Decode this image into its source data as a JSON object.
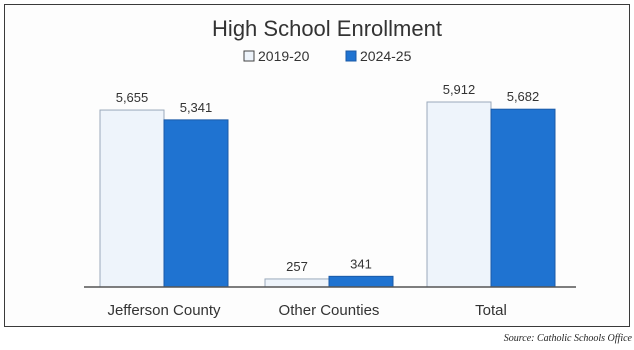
{
  "chart_data": {
    "type": "bar",
    "title": "High School Enrollment",
    "categories": [
      "Jefferson County",
      "Other Counties",
      "Total"
    ],
    "series": [
      {
        "name": "2019-20",
        "values": [
          5655,
          257,
          5912
        ],
        "labels": [
          "5,655",
          "257",
          "5,912"
        ],
        "color": "#eef4fb",
        "stroke": "#9aa9bb"
      },
      {
        "name": "2024-25",
        "values": [
          5341,
          341,
          5682
        ],
        "labels": [
          "5,341",
          "341",
          "5,682"
        ],
        "color": "#1f73d1",
        "stroke": "#1b5aa8"
      }
    ],
    "ylim": [
      0,
      6000
    ],
    "grid": false,
    "legend": "top-center",
    "xlabel": "",
    "ylabel": ""
  },
  "source_note": "Source:  Catholic Schools Office"
}
